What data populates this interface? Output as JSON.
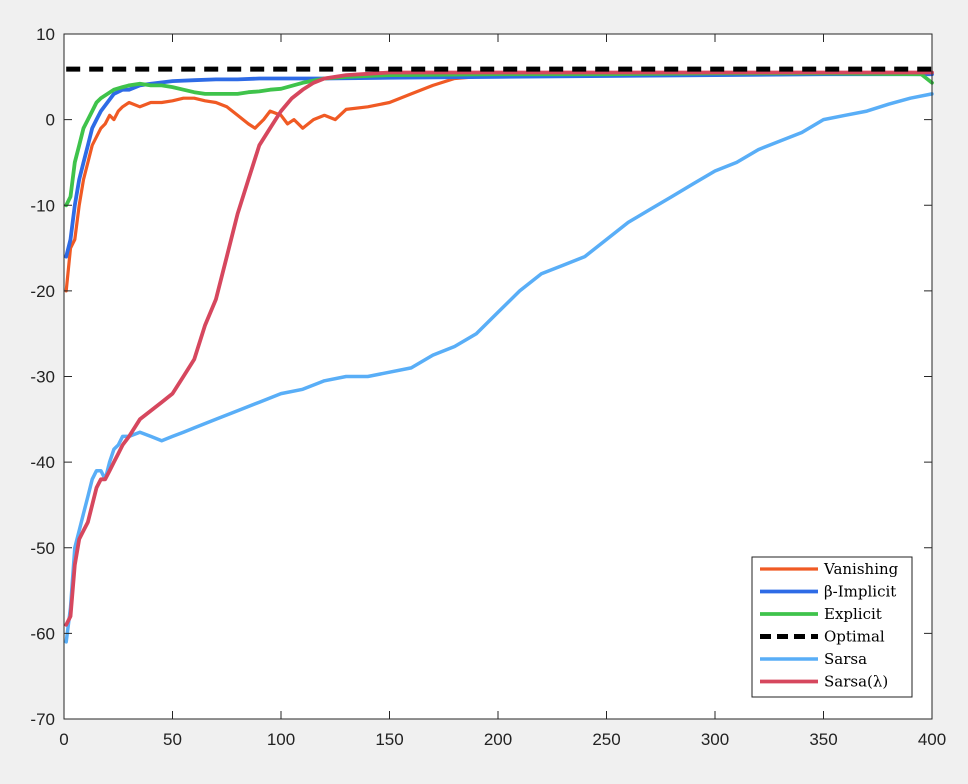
{
  "chart_data": {
    "type": "line",
    "title": "",
    "xlabel": "",
    "ylabel": "",
    "xlim": [
      0,
      400
    ],
    "ylim": [
      -70,
      10
    ],
    "xticks": [
      0,
      50,
      100,
      150,
      200,
      250,
      300,
      350,
      400
    ],
    "yticks": [
      10,
      0,
      -10,
      -20,
      -30,
      -40,
      -50,
      -60,
      -70
    ],
    "grid": false,
    "legend_position": "bottom-right",
    "series": [
      {
        "name": "Vanishing",
        "color": "#f05a24",
        "width": 3.2,
        "dash": "",
        "points": [
          [
            1,
            -20
          ],
          [
            3,
            -15
          ],
          [
            5,
            -14
          ],
          [
            7,
            -10
          ],
          [
            9,
            -7
          ],
          [
            11,
            -5
          ],
          [
            13,
            -3
          ],
          [
            15,
            -2
          ],
          [
            17,
            -1
          ],
          [
            19,
            -0.5
          ],
          [
            21,
            0.5
          ],
          [
            23,
            0
          ],
          [
            25,
            1
          ],
          [
            27,
            1.5
          ],
          [
            30,
            2
          ],
          [
            35,
            1.5
          ],
          [
            40,
            2
          ],
          [
            45,
            2
          ],
          [
            50,
            2.2
          ],
          [
            55,
            2.5
          ],
          [
            60,
            2.5
          ],
          [
            65,
            2.2
          ],
          [
            70,
            2
          ],
          [
            75,
            1.5
          ],
          [
            80,
            0.5
          ],
          [
            85,
            -0.5
          ],
          [
            88,
            -1
          ],
          [
            92,
            0
          ],
          [
            95,
            1
          ],
          [
            100,
            0.5
          ],
          [
            103,
            -0.5
          ],
          [
            106,
            0
          ],
          [
            110,
            -1
          ],
          [
            115,
            0
          ],
          [
            120,
            0.5
          ],
          [
            125,
            0
          ],
          [
            130,
            1.2
          ],
          [
            140,
            1.5
          ],
          [
            150,
            2
          ],
          [
            160,
            3
          ],
          [
            170,
            4
          ],
          [
            180,
            4.8
          ],
          [
            190,
            5
          ],
          [
            200,
            5.2
          ],
          [
            250,
            5.4
          ],
          [
            300,
            5.5
          ],
          [
            350,
            5.4
          ],
          [
            400,
            5.3
          ]
        ]
      },
      {
        "name": "β-Implicit",
        "color": "#2e6be6",
        "width": 3.8,
        "dash": "",
        "points": [
          [
            1,
            -16
          ],
          [
            3,
            -14
          ],
          [
            5,
            -10
          ],
          [
            7,
            -7
          ],
          [
            9,
            -5
          ],
          [
            11,
            -3
          ],
          [
            13,
            -1
          ],
          [
            15,
            0
          ],
          [
            17,
            1
          ],
          [
            20,
            2
          ],
          [
            23,
            3
          ],
          [
            27,
            3.5
          ],
          [
            30,
            3.5
          ],
          [
            35,
            4
          ],
          [
            40,
            4.2
          ],
          [
            50,
            4.5
          ],
          [
            60,
            4.6
          ],
          [
            70,
            4.7
          ],
          [
            80,
            4.7
          ],
          [
            90,
            4.8
          ],
          [
            100,
            4.8
          ],
          [
            120,
            4.8
          ],
          [
            150,
            4.9
          ],
          [
            200,
            5
          ],
          [
            250,
            5.1
          ],
          [
            300,
            5.2
          ],
          [
            350,
            5.3
          ],
          [
            400,
            5.3
          ]
        ]
      },
      {
        "name": "Explicit",
        "color": "#3fc34b",
        "width": 3.8,
        "dash": "",
        "points": [
          [
            1,
            -10
          ],
          [
            3,
            -9
          ],
          [
            5,
            -5
          ],
          [
            7,
            -3
          ],
          [
            9,
            -1
          ],
          [
            11,
            0
          ],
          [
            13,
            1
          ],
          [
            15,
            2
          ],
          [
            17,
            2.5
          ],
          [
            20,
            3
          ],
          [
            23,
            3.5
          ],
          [
            27,
            3.8
          ],
          [
            30,
            4
          ],
          [
            35,
            4.2
          ],
          [
            40,
            4
          ],
          [
            45,
            4
          ],
          [
            50,
            3.8
          ],
          [
            55,
            3.5
          ],
          [
            60,
            3.2
          ],
          [
            65,
            3
          ],
          [
            70,
            3
          ],
          [
            75,
            3
          ],
          [
            80,
            3
          ],
          [
            85,
            3.2
          ],
          [
            90,
            3.3
          ],
          [
            95,
            3.5
          ],
          [
            100,
            3.6
          ],
          [
            110,
            4.3
          ],
          [
            120,
            4.8
          ],
          [
            130,
            5
          ],
          [
            150,
            5.2
          ],
          [
            200,
            5.3
          ],
          [
            250,
            5.3
          ],
          [
            300,
            5.4
          ],
          [
            350,
            5.4
          ],
          [
            395,
            5.3
          ],
          [
            400,
            4.3
          ]
        ]
      },
      {
        "name": "Optimal",
        "color": "#000000",
        "width": 5,
        "dash": "14,9",
        "points": [
          [
            1,
            5.9
          ],
          [
            400,
            5.9
          ]
        ]
      },
      {
        "name": "Sarsa",
        "color": "#59aef7",
        "width": 3.5,
        "dash": "",
        "points": [
          [
            1,
            -61
          ],
          [
            3,
            -57
          ],
          [
            5,
            -50
          ],
          [
            7,
            -48
          ],
          [
            9,
            -46
          ],
          [
            11,
            -44
          ],
          [
            13,
            -42
          ],
          [
            15,
            -41
          ],
          [
            17,
            -41
          ],
          [
            19,
            -42
          ],
          [
            21,
            -40
          ],
          [
            23,
            -38.5
          ],
          [
            25,
            -38
          ],
          [
            27,
            -37
          ],
          [
            30,
            -37
          ],
          [
            35,
            -36.5
          ],
          [
            40,
            -37
          ],
          [
            45,
            -37.5
          ],
          [
            50,
            -37
          ],
          [
            55,
            -36.5
          ],
          [
            60,
            -36
          ],
          [
            70,
            -35
          ],
          [
            80,
            -34
          ],
          [
            90,
            -33
          ],
          [
            100,
            -32
          ],
          [
            110,
            -31.5
          ],
          [
            120,
            -30.5
          ],
          [
            130,
            -30
          ],
          [
            140,
            -30
          ],
          [
            150,
            -29.5
          ],
          [
            160,
            -29
          ],
          [
            170,
            -27.5
          ],
          [
            180,
            -26.5
          ],
          [
            190,
            -25
          ],
          [
            200,
            -22.5
          ],
          [
            210,
            -20
          ],
          [
            220,
            -18
          ],
          [
            230,
            -17
          ],
          [
            240,
            -16
          ],
          [
            250,
            -14
          ],
          [
            260,
            -12
          ],
          [
            270,
            -10.5
          ],
          [
            280,
            -9
          ],
          [
            290,
            -7.5
          ],
          [
            300,
            -6
          ],
          [
            310,
            -5
          ],
          [
            320,
            -3.5
          ],
          [
            330,
            -2.5
          ],
          [
            340,
            -1.5
          ],
          [
            350,
            0
          ],
          [
            360,
            0.5
          ],
          [
            370,
            1
          ],
          [
            380,
            1.8
          ],
          [
            390,
            2.5
          ],
          [
            400,
            3
          ]
        ]
      },
      {
        "name": "Sarsa(λ)",
        "color": "#d6475e",
        "width": 3.8,
        "dash": "",
        "points": [
          [
            1,
            -59
          ],
          [
            3,
            -58
          ],
          [
            5,
            -52
          ],
          [
            7,
            -49
          ],
          [
            9,
            -48
          ],
          [
            11,
            -47
          ],
          [
            13,
            -45
          ],
          [
            15,
            -43
          ],
          [
            17,
            -42
          ],
          [
            19,
            -42
          ],
          [
            21,
            -41
          ],
          [
            23,
            -40
          ],
          [
            25,
            -39
          ],
          [
            27,
            -38
          ],
          [
            30,
            -37
          ],
          [
            35,
            -35
          ],
          [
            40,
            -34
          ],
          [
            45,
            -33
          ],
          [
            50,
            -32
          ],
          [
            55,
            -30
          ],
          [
            60,
            -28
          ],
          [
            65,
            -24
          ],
          [
            70,
            -21
          ],
          [
            75,
            -16
          ],
          [
            80,
            -11
          ],
          [
            85,
            -7
          ],
          [
            90,
            -3
          ],
          [
            95,
            -1
          ],
          [
            100,
            1
          ],
          [
            105,
            2.5
          ],
          [
            110,
            3.5
          ],
          [
            115,
            4.3
          ],
          [
            120,
            4.8
          ],
          [
            130,
            5.2
          ],
          [
            150,
            5.5
          ],
          [
            200,
            5.5
          ],
          [
            250,
            5.5
          ],
          [
            300,
            5.5
          ],
          [
            350,
            5.5
          ],
          [
            400,
            5.5
          ]
        ]
      }
    ],
    "legend_labels": [
      "Vanishing",
      "β-Implicit",
      "Explicit",
      "Optimal",
      "Sarsa",
      "Sarsa(λ)"
    ]
  }
}
